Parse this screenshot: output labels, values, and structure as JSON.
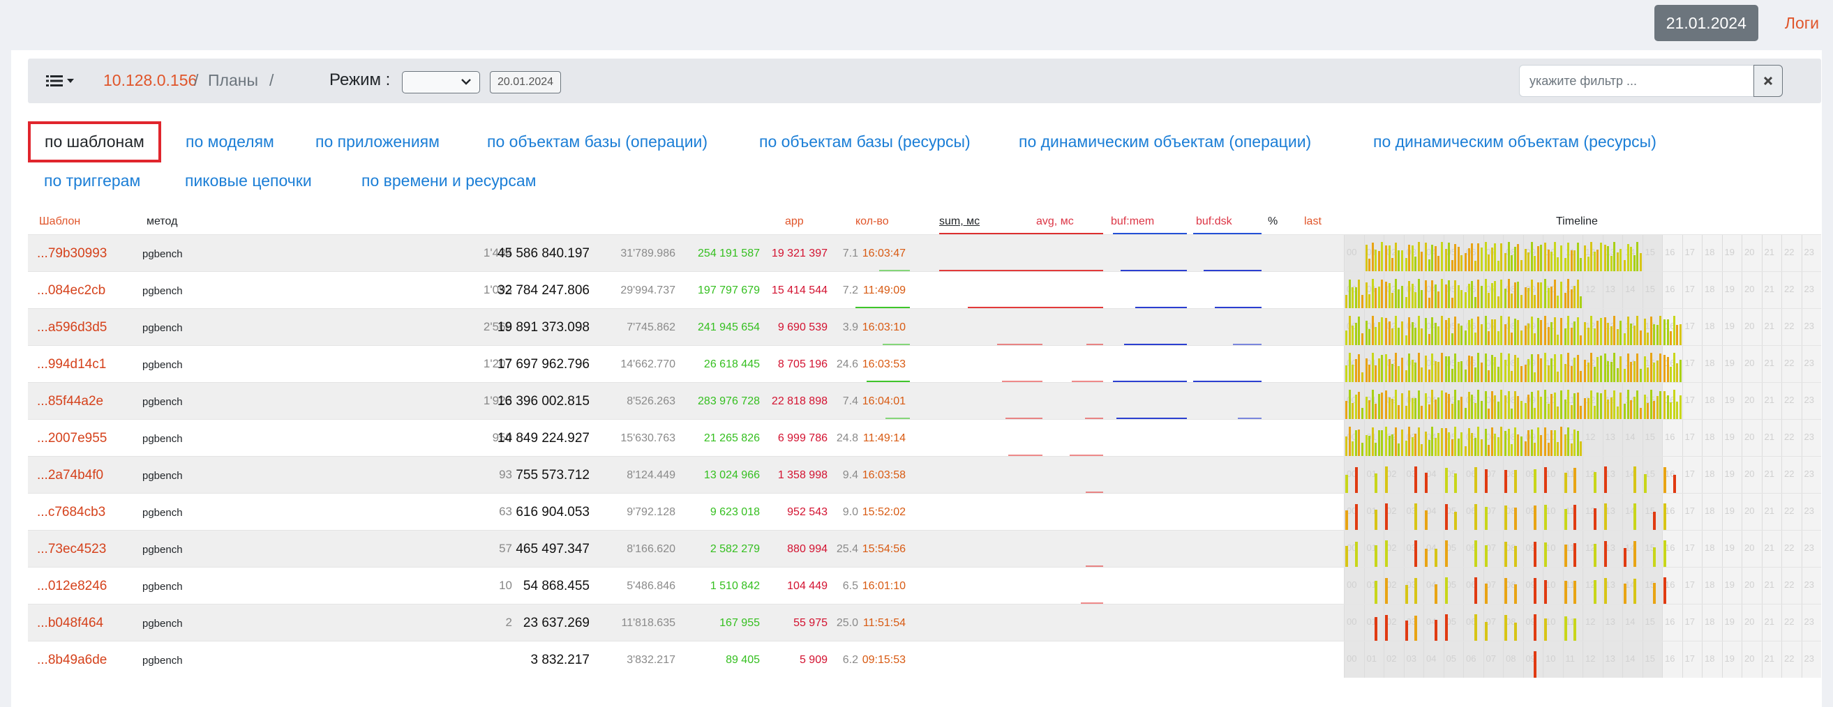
{
  "header": {
    "date": "21.01.2024",
    "logs_label": "Логи"
  },
  "toolbar": {
    "breadcrumb_ip": "10.128.0.156",
    "sep": "/",
    "breadcrumb_plans": "Планы",
    "mode_label": "Режим :",
    "mode_value": "",
    "date_button": "20.01.2024",
    "filter_placeholder": "укажите фильтр ...",
    "icons": {
      "menu": "list-icon",
      "filter_clear": "close-icon"
    }
  },
  "tabs": [
    "по шаблонам",
    "по моделям",
    "по приложениям",
    "по объектам базы (операции)",
    "по объектам базы (ресурсы)",
    "по динамическим объектам (операции)",
    "по динамическим объектам (ресурсы)",
    "по триггерам",
    "пиковые цепочки",
    "по времени и ресурсам"
  ],
  "active_tab": "по шаблонам",
  "columns": {
    "template": "Шаблон",
    "method": "метод",
    "app": "app",
    "count": "кол-во",
    "sum": "sum, мс",
    "avg": "avg, мс",
    "buf_mem": "buf:mem",
    "buf_dsk": "buf:dsk",
    "pct": "%",
    "last": "last",
    "timeline": "Timeline"
  },
  "hours": [
    "00",
    "01",
    "02",
    "03",
    "04",
    "05",
    "06",
    "07",
    "08",
    "09",
    "10",
    "11",
    "12",
    "13",
    "14",
    "15",
    "16",
    "17",
    "18",
    "19",
    "20",
    "21",
    "22",
    "23"
  ],
  "colors": {
    "accent": "#e0552a",
    "link": "#1b7ed6",
    "green": "#34bf1f",
    "red": "#d31230",
    "blue": "#2350d6"
  },
  "rows": [
    {
      "id": "...79b30993",
      "method": "pgbench",
      "count": "1'434",
      "sum": "45 586 840.197",
      "avg": "31'789.986",
      "buf_mem": "254 191 587",
      "buf_dsk": "19 321 397",
      "pct": "7.1",
      "last": "16:03:47",
      "share": {
        "count": 0.56,
        "sum": 1.0,
        "avg": 1.0,
        "mem": 0.9,
        "dsk": 0.85
      },
      "active_hours": [
        0.08,
        0.62
      ]
    },
    {
      "id": "...084ec2cb",
      "method": "pgbench",
      "count": "1'093",
      "sum": "32 784 247.806",
      "avg": "29'994.737",
      "buf_mem": "197 797 679",
      "buf_dsk": "15 414 544",
      "pct": "7.2",
      "last": "11:49:09",
      "share": {
        "count": 1.0,
        "sum": 0.72,
        "avg": 0.94,
        "mem": 0.7,
        "dsk": 0.68
      },
      "active_hours": [
        0.0,
        0.5
      ]
    },
    {
      "id": "...a596d3d5",
      "method": "pgbench",
      "count": "2'568",
      "sum": "19 891 373.098",
      "avg": "7'745.862",
      "buf_mem": "241 945 654",
      "buf_dsk": "9 690 539",
      "pct": "3.9",
      "last": "16:03:10",
      "share": {
        "count": 0.5,
        "sum": 0.44,
        "avg": 0.24,
        "mem": 0.85,
        "dsk": 0.42
      },
      "active_hours": [
        0.0,
        0.67
      ]
    },
    {
      "id": "...994d14c1",
      "method": "pgbench",
      "count": "1'207",
      "sum": "17 697 962.796",
      "avg": "14'662.770",
      "buf_mem": "26 618 445",
      "buf_dsk": "8 705 196",
      "pct": "24.6",
      "last": "16:03:53",
      "share": {
        "count": 0.8,
        "sum": 0.39,
        "avg": 0.46,
        "mem": 1.0,
        "dsk": 1.0
      },
      "active_hours": [
        0.0,
        0.67
      ]
    },
    {
      "id": "...85f44a2e",
      "method": "pgbench",
      "count": "1'923",
      "sum": "16 396 002.815",
      "avg": "8'526.263",
      "buf_mem": "283 976 728",
      "buf_dsk": "22 818 898",
      "pct": "7.4",
      "last": "16:04:01",
      "share": {
        "count": 0.45,
        "sum": 0.36,
        "avg": 0.27,
        "mem": 0.95,
        "dsk": 0.35
      },
      "active_hours": [
        0.0,
        0.67
      ]
    },
    {
      "id": "...2007e955",
      "method": "pgbench",
      "count": "950",
      "sum": "14 849 224.927",
      "avg": "15'630.763",
      "buf_mem": "21 265 826",
      "buf_dsk": "6 999 786",
      "pct": "24.8",
      "last": "11:49:14",
      "share": {
        "count": 0.0,
        "sum": 0.33,
        "avg": 0.49,
        "mem": 0.0,
        "dsk": 0.0
      },
      "active_hours": [
        0.0,
        0.5
      ]
    },
    {
      "id": "...2a74b4f0",
      "method": "pgbench",
      "count": "93",
      "sum": "755 573.712",
      "avg": "8'124.449",
      "buf_mem": "13 024 966",
      "buf_dsk": "1 358 998",
      "pct": "9.4",
      "last": "16:03:58",
      "share": {
        "count": 0.0,
        "sum": 0.0,
        "avg": 0.25,
        "mem": 0.0,
        "dsk": 0.0
      },
      "active_hours": [
        0.0,
        0.67
      ]
    },
    {
      "id": "...c7684cb3",
      "method": "pgbench",
      "count": "63",
      "sum": "616 904.053",
      "avg": "9'792.128",
      "buf_mem": "9 623 018",
      "buf_dsk": "952 543",
      "pct": "9.0",
      "last": "15:52:02",
      "share": {
        "count": 0.0,
        "sum": 0.0,
        "avg": 0.0,
        "mem": 0.0,
        "dsk": 0.0
      },
      "active_hours": [
        0.0,
        0.67
      ]
    },
    {
      "id": "...73ec4523",
      "method": "pgbench",
      "count": "57",
      "sum": "465 497.347",
      "avg": "8'166.620",
      "buf_mem": "2 582 279",
      "buf_dsk": "880 994",
      "pct": "25.4",
      "last": "15:54:56",
      "share": {
        "count": 0.0,
        "sum": 0.0,
        "avg": 0.25,
        "mem": 0.0,
        "dsk": 0.0
      },
      "active_hours": [
        0.0,
        0.67
      ]
    },
    {
      "id": "...012e8246",
      "method": "pgbench",
      "count": "10",
      "sum": "54 868.455",
      "avg": "5'486.846",
      "buf_mem": "1 510 842",
      "buf_dsk": "104 449",
      "pct": "6.5",
      "last": "16:01:10",
      "share": {
        "count": 0.0,
        "sum": 0.0,
        "avg": 0.33,
        "mem": 0.0,
        "dsk": 0.0
      },
      "active_hours": [
        0.08,
        0.67
      ]
    },
    {
      "id": "...b048f464",
      "method": "pgbench",
      "count": "2",
      "sum": "23 637.269",
      "avg": "11'818.635",
      "buf_mem": "167 955",
      "buf_dsk": "55 975",
      "pct": "25.0",
      "last": "11:51:54",
      "share": {
        "count": 0.0,
        "sum": 0.0,
        "avg": 0.0,
        "mem": 0.0,
        "dsk": 0.0
      },
      "active_hours": [
        0.08,
        0.5
      ]
    },
    {
      "id": "...8b49a6de",
      "method": "pgbench",
      "count": "",
      "sum": "3 832.217",
      "avg": "3'832.217",
      "buf_mem": "89 405",
      "buf_dsk": "5 909",
      "pct": "6.2",
      "last": "09:15:53",
      "share": {
        "count": 0.0,
        "sum": 0.0,
        "avg": 0.0,
        "mem": 0.0,
        "dsk": 0.0
      },
      "active_hours": [
        0.375,
        0.38
      ]
    }
  ]
}
